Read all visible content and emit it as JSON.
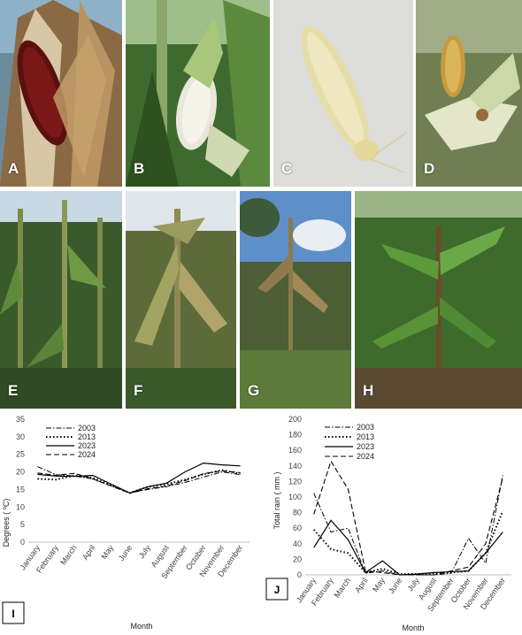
{
  "panels": [
    {
      "letter": "A"
    },
    {
      "letter": "B"
    },
    {
      "letter": "C"
    },
    {
      "letter": "D"
    },
    {
      "letter": "E"
    },
    {
      "letter": "F"
    },
    {
      "letter": "G"
    },
    {
      "letter": "H"
    }
  ],
  "chart_data": [
    {
      "type": "line",
      "panel_label": "I",
      "xlabel": "Month",
      "ylabel": "Degrees ( ºC)",
      "ylim": [
        0,
        35
      ],
      "yticks": [
        0,
        5,
        10,
        15,
        20,
        25,
        30,
        35
      ],
      "categories": [
        "January",
        "February",
        "March",
        "April",
        "May",
        "June",
        "July",
        "August",
        "September",
        "October",
        "November",
        "December"
      ],
      "legend_position": "top-left",
      "series": [
        {
          "name": "2003",
          "style": "dash-dot",
          "values": [
            21.5,
            19.2,
            18.8,
            18.0,
            16.0,
            14.0,
            15.0,
            15.8,
            17.0,
            18.5,
            20.0,
            19.2
          ]
        },
        {
          "name": "2013",
          "style": "dotted",
          "values": [
            18.0,
            17.8,
            19.0,
            18.3,
            16.2,
            14.0,
            15.8,
            16.5,
            17.8,
            19.3,
            20.5,
            19.5
          ]
        },
        {
          "name": "2023",
          "style": "solid",
          "values": [
            19.3,
            18.8,
            18.7,
            19.0,
            16.5,
            14.0,
            15.8,
            16.8,
            20.0,
            22.5,
            22.0,
            21.7
          ]
        },
        {
          "name": "2024",
          "style": "dashed",
          "values": [
            19.7,
            19.0,
            19.6,
            18.0,
            16.0,
            14.0,
            15.2,
            16.0,
            17.5,
            19.5,
            20.3,
            19.8
          ]
        }
      ]
    },
    {
      "type": "line",
      "panel_label": "J",
      "xlabel": "Month",
      "ylabel": "Total rain ( mm )",
      "ylim": [
        0,
        200
      ],
      "yticks": [
        0,
        20,
        40,
        60,
        80,
        100,
        120,
        140,
        160,
        180,
        200
      ],
      "categories": [
        "January",
        "February",
        "March",
        "April",
        "May",
        "June",
        "July",
        "August",
        "September",
        "October",
        "November",
        "December"
      ],
      "legend_position": "top-left",
      "series": [
        {
          "name": "2003",
          "style": "dash-dot",
          "values": [
            105,
            55,
            60,
            2,
            5,
            0,
            0,
            0,
            2,
            47,
            15,
            128
          ]
        },
        {
          "name": "2013",
          "style": "dotted",
          "values": [
            58,
            33,
            28,
            3,
            8,
            1,
            1,
            2,
            3,
            5,
            28,
            82
          ]
        },
        {
          "name": "2023",
          "style": "solid",
          "values": [
            35,
            70,
            45,
            3,
            18,
            0,
            1,
            3,
            4,
            5,
            28,
            55
          ]
        },
        {
          "name": "2024",
          "style": "dashed",
          "values": [
            78,
            146,
            110,
            5,
            3,
            0,
            0,
            0,
            5,
            10,
            40,
            125
          ]
        }
      ]
    }
  ],
  "colors": {
    "line": "#000000",
    "axis": "#bfbfbf",
    "background": "#ffffff"
  }
}
